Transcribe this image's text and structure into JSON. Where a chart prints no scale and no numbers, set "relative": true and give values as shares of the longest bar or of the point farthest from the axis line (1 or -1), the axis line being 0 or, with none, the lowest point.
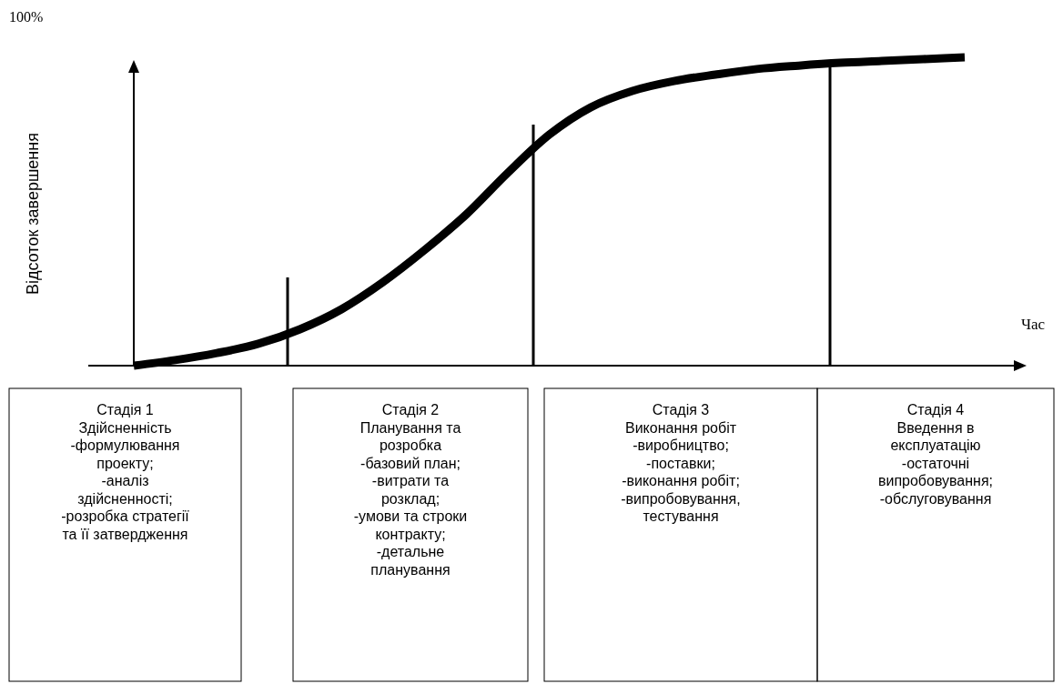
{
  "chart_data": {
    "type": "line",
    "relative": true,
    "ylabel": "Відсоток завершення",
    "xlabel": "Час",
    "categories": [
      null,
      null,
      null,
      null,
      null,
      null,
      null,
      null,
      null,
      null,
      null,
      null,
      null,
      null,
      null,
      null,
      null,
      null,
      null,
      null,
      null
    ],
    "series": [
      {
        "color": "#000000",
        "values": [
          0,
          0.018,
          0.041,
          0.071,
          0.118,
          0.183,
          0.271,
          0.375,
          0.49,
          0.625,
          0.749,
          0.838,
          0.891,
          0.923,
          0.944,
          0.962,
          0.973,
          0.982,
          0.988,
          0.994,
          1
        ]
      }
    ],
    "annotations": [
      "100%",
      "Стадія 1\nЗдійсненність\n-формулювання\nпроекту;\n-аналіз\nздійсненності;\n-розробка стратегії\nта її затвердження",
      "Стадія 2\nПланування та\nрозробка\n-базовий план;\n-витрати та\nрозклад;\n-умови та строки\nконтракту;\n-детальне\nпланування",
      "Стадія 3\nВиконання робіт\n-виробництво;\n-поставки;\n-виконання робіт;\n-випробовування,\nтестування",
      "Стадія 4\nВведення в\nексплуатацію\n-остаточні\nвипробовування;\n-обслуговування"
    ]
  }
}
